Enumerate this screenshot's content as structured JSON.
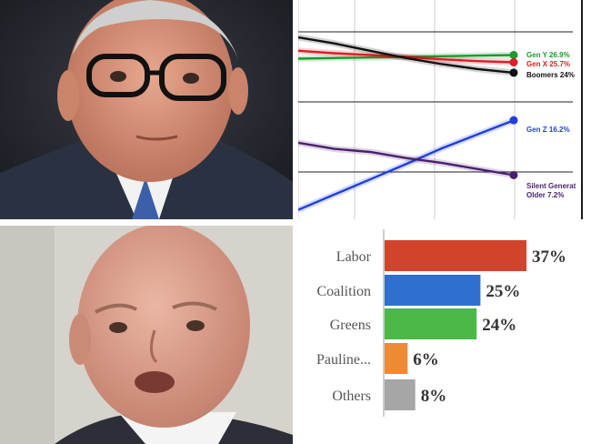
{
  "photos": {
    "top": {
      "icon": "man-with-glasses-photo"
    },
    "bottom": {
      "icon": "bald-man-speaking-photo"
    }
  },
  "chart_data": [
    {
      "type": "line",
      "title": "",
      "xlabel": "",
      "ylabel": "",
      "grid": true,
      "legend": "right-end-labels",
      "x": [
        0,
        1,
        2,
        3,
        4,
        5,
        6
      ],
      "series": [
        {
          "name": "Gen Y 26.9%",
          "color": "#1a9a2e",
          "values": [
            26.3,
            26.4,
            26.5,
            26.6,
            26.7,
            26.8,
            26.9
          ]
        },
        {
          "name": "Gen X 25.7%",
          "color": "#e01b24",
          "values": [
            27.6,
            27.2,
            26.9,
            26.6,
            26.2,
            25.9,
            25.7
          ]
        },
        {
          "name": "Boomers 24%",
          "color": "#111111",
          "values": [
            29.8,
            28.8,
            27.6,
            26.4,
            25.4,
            24.6,
            24.0
          ]
        },
        {
          "name": "Gen Z 16.2%",
          "color": "#1f3fe0",
          "values": [
            1.5,
            4.0,
            6.5,
            9.0,
            11.6,
            13.9,
            16.2
          ]
        },
        {
          "name": "Silent Generat Older 7.2%",
          "color": "#4b1f6f",
          "values": [
            12.5,
            11.5,
            11.0,
            10.0,
            9.2,
            8.2,
            7.2
          ]
        }
      ],
      "series_labels": {
        "gen_y": "Gen Y 26.9%",
        "gen_x": "Gen X 25.7%",
        "boomers": "Boomers 24%",
        "gen_z": "Gen Z 16.2%",
        "silent_1": "Silent Generat",
        "silent_2": "Older 7.2%"
      }
    },
    {
      "type": "bar",
      "orientation": "horizontal",
      "title": "",
      "xlabel": "",
      "ylabel": "",
      "categories": [
        "Labor",
        "Coalition",
        "Greens",
        "Pauline...",
        "Others"
      ],
      "values": [
        37,
        25,
        24,
        6,
        8
      ],
      "value_labels": [
        "37%",
        "25%",
        "24%",
        "6%",
        "8%"
      ],
      "colors": [
        "#d1442b",
        "#2f6fcf",
        "#4cb847",
        "#ee8a33",
        "#a6a6a6"
      ],
      "xlim": [
        0,
        37
      ]
    }
  ]
}
